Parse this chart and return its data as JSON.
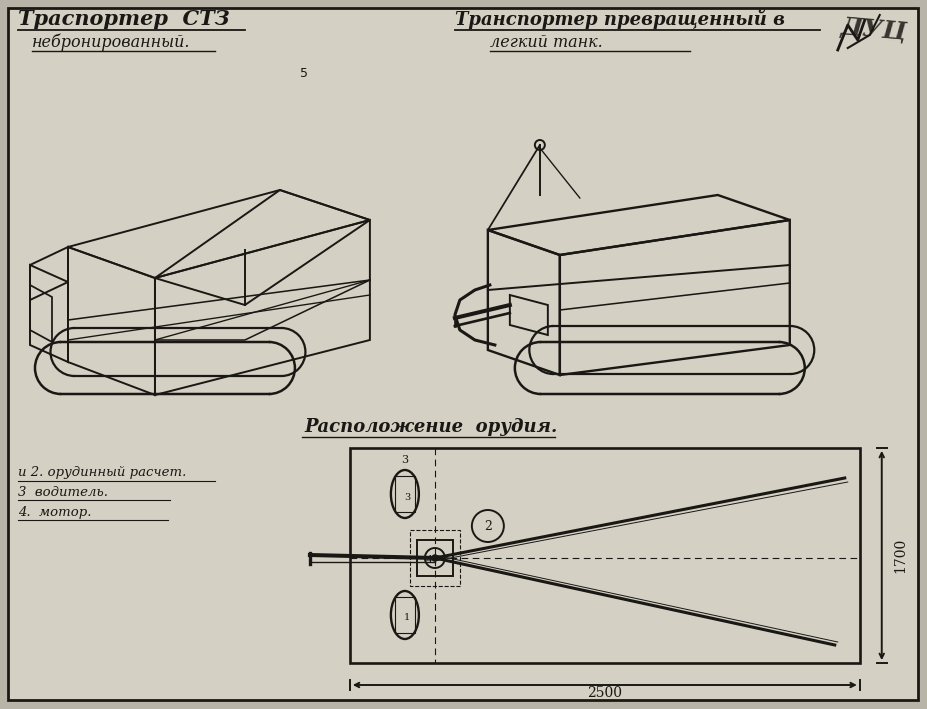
{
  "bg_color": "#b8b4a8",
  "paper_color": "#d4d0c4",
  "line_color": "#1a1814",
  "title_left_line1": "Траспортер  СТЗ",
  "title_left_line2": "небронированный.",
  "title_right_line1": "Транспортер превращенный в",
  "title_right_line2": "легкий танк.",
  "section_title": "Расположение  орудия.",
  "legend1": "и 2. орудинный расчет.",
  "legend2": "3  водитель.",
  "legend3": "4.  мотор.",
  "dim_horiz": "2500",
  "dim_vert": "1700",
  "note5": "5"
}
